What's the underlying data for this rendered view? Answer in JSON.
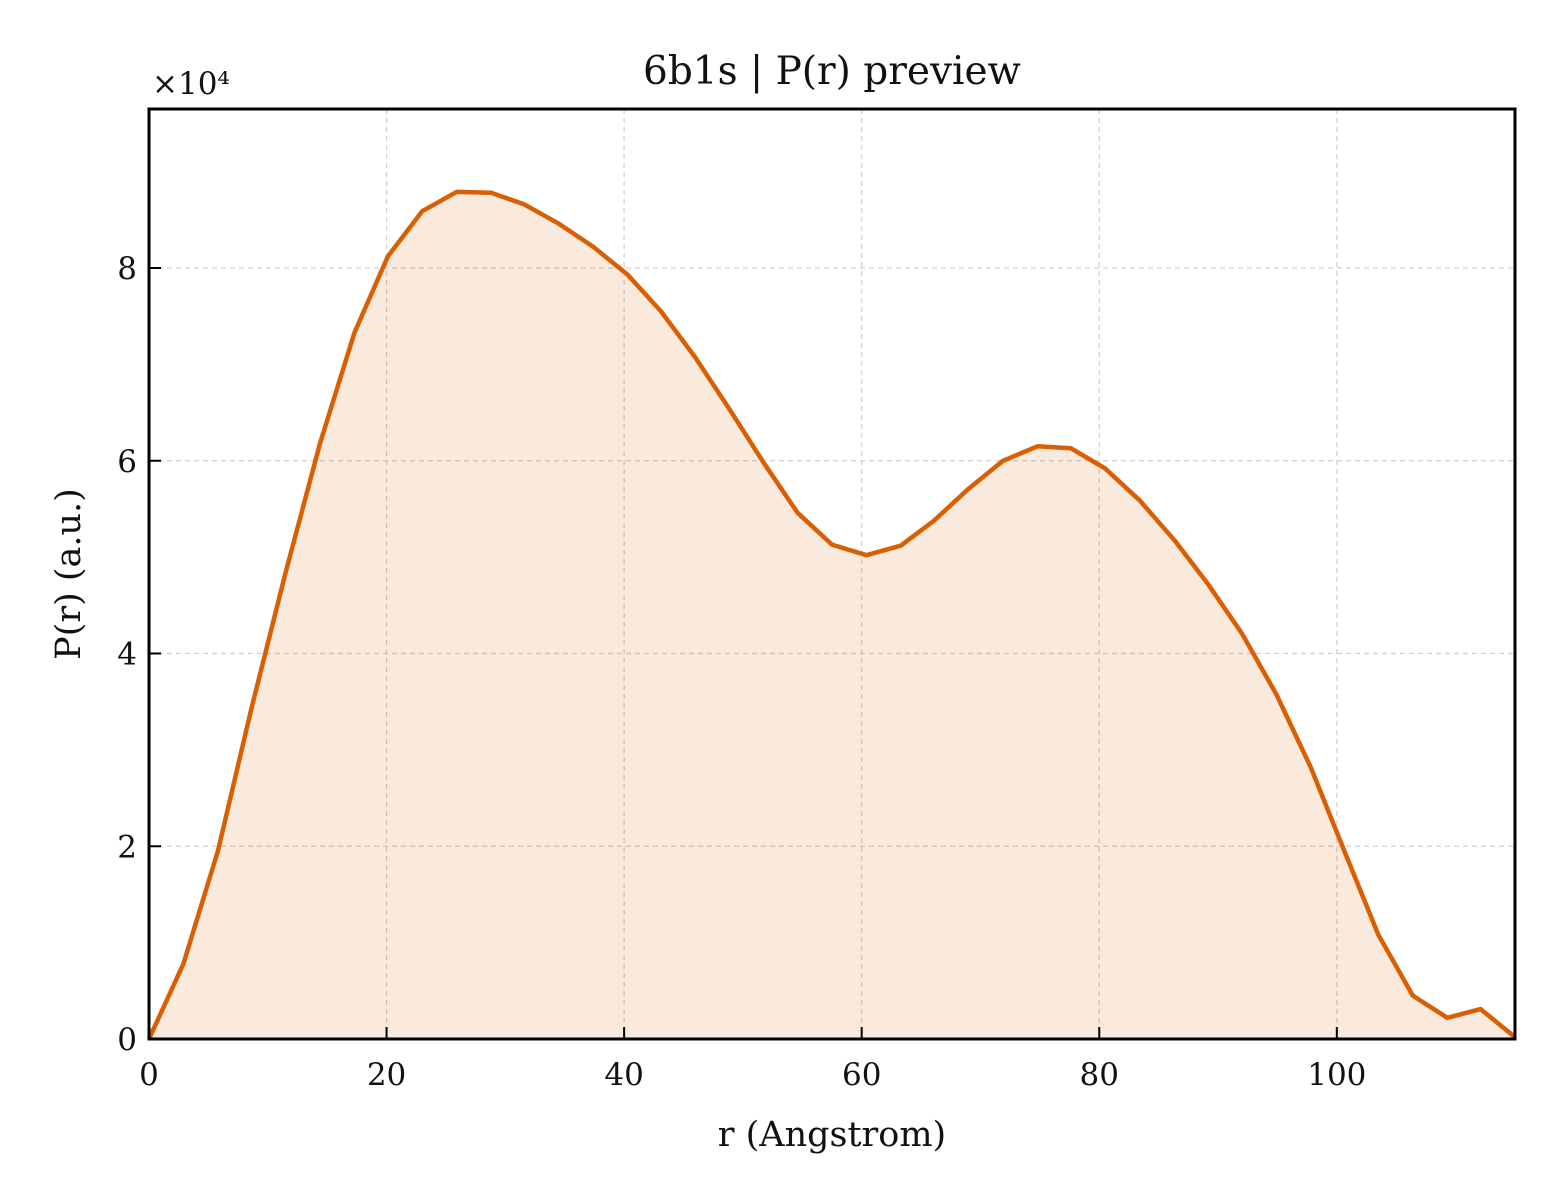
{
  "chart_data": {
    "type": "area",
    "title": "6b1s | P(r) preview",
    "xlabel": "r (Angstrom)",
    "ylabel": "P(r) (a.u.)",
    "y_multiplier_label": "×10⁴",
    "y_unit_scale": 10000,
    "xlim": [
      0,
      115
    ],
    "ylim": [
      0,
      9.65
    ],
    "x_ticks": [
      0,
      20,
      40,
      60,
      80,
      100
    ],
    "y_ticks": [
      0,
      2,
      4,
      6,
      8
    ],
    "x_tick_labels": [
      "0",
      "20",
      "40",
      "60",
      "80",
      "100"
    ],
    "y_tick_labels": [
      "0",
      "2",
      "4",
      "6",
      "8"
    ],
    "grid": true,
    "line_color": "#d95f02",
    "fill_color": "#d95f02",
    "fill_opacity": 0.13,
    "series": [
      {
        "x": [
          0,
          2.9,
          5.8,
          8.6,
          11.5,
          14.4,
          17.3,
          20.1,
          23.0,
          25.9,
          28.8,
          31.6,
          34.5,
          37.4,
          40.3,
          43.1,
          46.0,
          48.9,
          51.8,
          54.6,
          57.5,
          60.4,
          63.3,
          66.1,
          69.0,
          71.9,
          74.8,
          77.6,
          80.5,
          83.4,
          86.3,
          89.1,
          92.0,
          94.9,
          97.8,
          100.6,
          103.5,
          106.4,
          109.3,
          112.1,
          115.0
        ],
        "y": [
          0,
          0.78,
          1.95,
          3.42,
          4.84,
          6.18,
          7.33,
          8.12,
          8.59,
          8.79,
          8.78,
          8.66,
          8.46,
          8.22,
          7.93,
          7.55,
          7.07,
          6.53,
          5.97,
          5.46,
          5.13,
          5.02,
          5.12,
          5.38,
          5.71,
          6.0,
          6.15,
          6.13,
          5.92,
          5.59,
          5.18,
          4.73,
          4.21,
          3.58,
          2.82,
          1.96,
          1.08,
          0.45,
          0.22,
          0.31,
          0.02
        ]
      }
    ]
  }
}
